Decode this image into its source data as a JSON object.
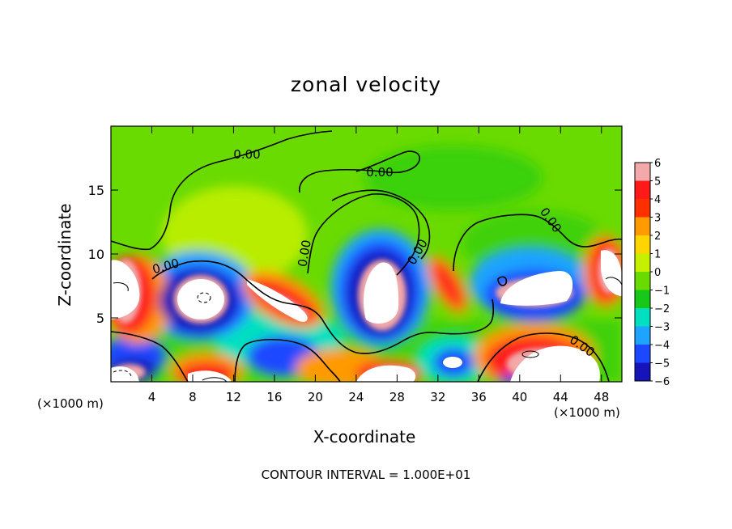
{
  "chart_data": {
    "type": "heatmap",
    "title": "zonal velocity",
    "xlabel": "X-coordinate",
    "ylabel": "Z-coordinate",
    "x_unit": "(×1000 m)",
    "xlim": [
      0,
      50
    ],
    "ylim": [
      0,
      20
    ],
    "x_ticks": [
      4,
      8,
      12,
      16,
      20,
      24,
      28,
      32,
      36,
      40,
      44,
      48
    ],
    "y_ticks": [
      5,
      10,
      15
    ],
    "colorbar": {
      "levels": [
        6,
        5,
        4,
        3,
        2,
        1,
        0,
        -1,
        -2,
        -3,
        -4,
        -5,
        -6
      ],
      "colors": [
        "#f3a9a9",
        "#ff1a1a",
        "#ff3000",
        "#ff9a00",
        "#ffd500",
        "#c5f000",
        "#6adb00",
        "#18c818",
        "#00e0c0",
        "#1ea3ff",
        "#1c48ff",
        "#1414b8",
        "#6a0ca0"
      ]
    },
    "contour_labels": [
      "0.00",
      "0.00",
      "0.00",
      "0.00",
      "0.00",
      "0.00",
      "0.00"
    ],
    "features": [
      {
        "x": 26.8,
        "z": 6.2,
        "value": "strong positive"
      },
      {
        "x": 9.5,
        "z": 6.5,
        "value": "strong positive"
      },
      {
        "x": 1.5,
        "z": 7.5,
        "value": "strong positive"
      },
      {
        "x": 42.0,
        "z": 7.5,
        "value": "strong positive"
      },
      {
        "x": 48.5,
        "z": 8.0,
        "value": "strong positive"
      },
      {
        "x": 41.5,
        "z": 2.0,
        "value": "strong positive"
      },
      {
        "x": 33.0,
        "z": 7.0,
        "value": "positive"
      },
      {
        "x": 17.0,
        "z": 6.5,
        "value": "positive"
      },
      {
        "x": 33.0,
        "z": 1.8,
        "value": "negative"
      },
      {
        "x": 19.0,
        "z": 1.5,
        "value": "negative"
      }
    ],
    "footnote": "CONTOUR INTERVAL = 1.000E+01"
  }
}
